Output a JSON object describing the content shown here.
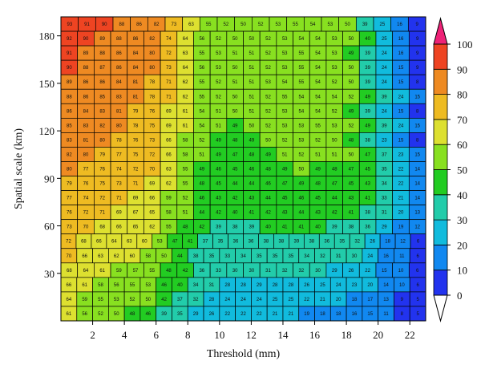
{
  "chart_data": {
    "type": "heatmap",
    "title": "",
    "xlabel": "Threshold (mm)",
    "ylabel": "Spatial scale (km)",
    "x_ticks": [
      2,
      4,
      6,
      8,
      10,
      12,
      14,
      16,
      18,
      20,
      22
    ],
    "y_ticks": [
      30,
      60,
      90,
      120,
      150,
      180
    ],
    "x_range": [
      0,
      23
    ],
    "y_range": [
      0,
      192
    ],
    "colorbar": {
      "ticks": [
        0,
        10,
        20,
        30,
        40,
        50,
        60,
        70,
        80,
        90,
        100
      ],
      "colors": [
        "#2233ee",
        "#1188f0",
        "#11bbdd",
        "#22ccaa",
        "#22cc22",
        "#88e020",
        "#dde030",
        "#eebb22",
        "#ee8a22",
        "#ee4422"
      ]
    },
    "cells": [
      [
        93,
        91,
        90,
        88,
        86,
        82,
        73,
        63,
        55,
        52,
        50,
        52,
        53,
        55,
        54,
        53,
        50,
        39,
        25,
        16,
        9
      ],
      [
        92,
        90,
        89,
        88,
        86,
        82,
        74,
        64,
        56,
        52,
        50,
        50,
        52,
        53,
        54,
        54,
        53,
        50,
        40,
        25,
        16,
        9
      ],
      [
        91,
        89,
        88,
        86,
        84,
        80,
        72,
        63,
        55,
        53,
        51,
        51,
        52,
        53,
        55,
        54,
        53,
        49,
        39,
        24,
        16,
        9
      ],
      [
        90,
        88,
        87,
        86,
        84,
        80,
        73,
        64,
        56,
        53,
        50,
        51,
        52,
        53,
        55,
        54,
        53,
        50,
        39,
        24,
        15,
        9
      ],
      [
        89,
        86,
        86,
        84,
        81,
        78,
        71,
        62,
        55,
        52,
        51,
        51,
        53,
        54,
        55,
        54,
        52,
        50,
        39,
        24,
        15,
        8
      ],
      [
        88,
        86,
        85,
        83,
        81,
        78,
        71,
        62,
        55,
        52,
        50,
        51,
        52,
        55,
        54,
        54,
        54,
        52,
        49,
        39,
        24,
        15
      ],
      [
        86,
        84,
        83,
        81,
        79,
        76,
        69,
        61,
        54,
        51,
        50,
        51,
        52,
        53,
        54,
        54,
        52,
        49,
        39,
        24,
        15,
        8
      ],
      [
        85,
        83,
        82,
        80,
        78,
        75,
        69,
        61,
        54,
        51,
        49,
        50,
        52,
        53,
        53,
        55,
        53,
        52,
        49,
        39,
        24,
        15
      ],
      [
        83,
        81,
        80,
        78,
        76,
        73,
        66,
        58,
        52,
        49,
        48,
        49,
        50,
        52,
        53,
        52,
        50,
        48,
        38,
        23,
        15,
        8
      ],
      [
        82,
        80,
        79,
        77,
        75,
        72,
        66,
        58,
        51,
        49,
        47,
        48,
        49,
        51,
        52,
        51,
        51,
        50,
        47,
        37,
        23,
        15
      ],
      [
        80,
        77,
        76,
        74,
        72,
        70,
        63,
        55,
        49,
        46,
        45,
        46,
        48,
        49,
        50,
        49,
        48,
        47,
        45,
        35,
        22,
        14
      ],
      [
        79,
        76,
        75,
        73,
        71,
        69,
        62,
        55,
        48,
        45,
        44,
        44,
        46,
        47,
        49,
        48,
        47,
        45,
        43,
        34,
        22,
        14
      ],
      [
        77,
        74,
        72,
        71,
        69,
        66,
        59,
        52,
        46,
        43,
        42,
        43,
        44,
        45,
        46,
        45,
        44,
        43,
        41,
        33,
        21,
        14
      ],
      [
        76,
        72,
        71,
        69,
        67,
        65,
        58,
        51,
        44,
        42,
        40,
        41,
        42,
        43,
        44,
        43,
        42,
        41,
        38,
        31,
        20,
        13
      ],
      [
        73,
        70,
        68,
        66,
        65,
        62,
        55,
        48,
        42,
        39,
        38,
        39,
        40,
        41,
        41,
        40,
        39,
        38,
        36,
        29,
        19,
        12
      ],
      [
        72,
        68,
        66,
        64,
        63,
        60,
        53,
        47,
        41,
        37,
        35,
        36,
        36,
        38,
        38,
        39,
        38,
        36,
        35,
        32,
        26,
        18,
        12,
        6
      ],
      [
        70,
        66,
        63,
        62,
        60,
        58,
        50,
        44,
        38,
        35,
        33,
        34,
        35,
        35,
        35,
        34,
        32,
        31,
        30,
        24,
        16,
        11,
        6
      ],
      [
        68,
        64,
        61,
        59,
        57,
        55,
        48,
        42,
        36,
        33,
        30,
        30,
        31,
        32,
        32,
        30,
        29,
        26,
        22,
        15,
        10,
        6
      ],
      [
        66,
        61,
        58,
        56,
        55,
        53,
        46,
        40,
        34,
        31,
        28,
        28,
        29,
        28,
        28,
        26,
        25,
        24,
        23,
        20,
        14,
        10,
        6
      ],
      [
        64,
        59,
        55,
        53,
        52,
        50,
        42,
        37,
        32,
        28,
        24,
        24,
        24,
        25,
        25,
        22,
        21,
        20,
        18,
        17,
        13,
        9,
        5
      ],
      [
        61,
        56,
        52,
        50,
        48,
        46,
        39,
        35,
        29,
        26,
        22,
        22,
        22,
        21,
        21,
        19,
        18,
        18,
        16,
        15,
        11,
        8,
        5
      ]
    ]
  }
}
